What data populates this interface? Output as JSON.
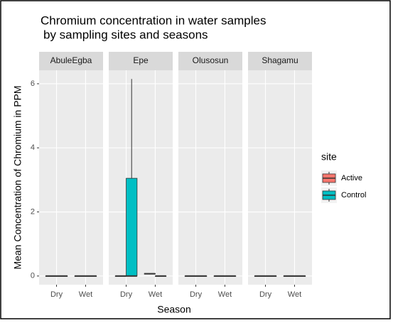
{
  "chart_data": {
    "type": "boxplot",
    "title": [
      "Chromium concentration in water samples",
      "by sampling sites and seasons"
    ],
    "xlabel": "Season",
    "ylabel": "Mean Concentration of Chromium in PPM",
    "categories": [
      "Dry",
      "Wet"
    ],
    "ylim": [
      -0.27,
      6.42
    ],
    "yticks": [
      0,
      2,
      4,
      6
    ],
    "grid": true,
    "legend": {
      "title": "site",
      "position": "right"
    },
    "series": [
      {
        "name": "Active",
        "color": "#F8766D"
      },
      {
        "name": "Control",
        "color": "#00BFC4"
      }
    ],
    "facets": [
      {
        "name": "AbuleEgba",
        "boxes": [
          [
            [
              0,
              0,
              0,
              0,
              0
            ],
            [
              0,
              0,
              0,
              0,
              0
            ]
          ],
          [
            [
              0,
              0,
              0,
              0,
              0
            ],
            [
              0,
              0,
              0,
              0,
              0
            ]
          ]
        ]
      },
      {
        "name": "Epe",
        "boxes": [
          [
            [
              0,
              0,
              0,
              0,
              0
            ],
            [
              0,
              0,
              0,
              3.05,
              6.15
            ]
          ],
          [
            [
              0.05,
              0.06,
              0.07,
              0.08,
              0.08
            ],
            [
              0,
              0,
              0,
              0,
              0
            ]
          ]
        ]
      },
      {
        "name": "Olusosun",
        "boxes": [
          [
            [
              0,
              0,
              0,
              0,
              0
            ],
            [
              0,
              0,
              0,
              0,
              0
            ]
          ],
          [
            [
              0,
              0,
              0,
              0,
              0
            ],
            [
              0,
              0,
              0,
              0,
              0
            ]
          ]
        ]
      },
      {
        "name": "Shagamu",
        "boxes": [
          [
            [
              0,
              0,
              0,
              0,
              0
            ],
            [
              0,
              0,
              0,
              0,
              0
            ]
          ],
          [
            [
              0,
              0,
              0,
              0,
              0
            ],
            [
              0,
              0,
              0,
              0,
              0
            ]
          ]
        ]
      }
    ]
  }
}
